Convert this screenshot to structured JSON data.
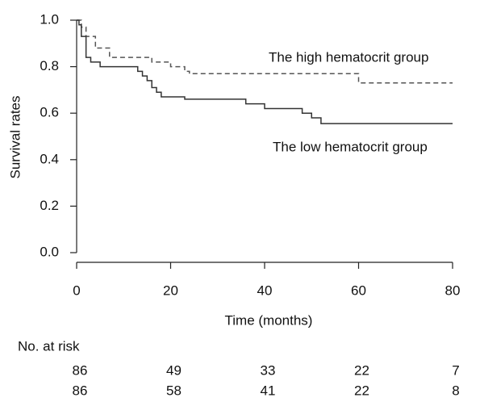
{
  "chart_data": {
    "type": "step",
    "x_label": "Time (months)",
    "y_label": "Survival rates",
    "xlim": [
      0,
      80
    ],
    "xticks": [
      0,
      20,
      40,
      60,
      80
    ],
    "ylim": [
      0,
      1
    ],
    "yticks": [
      {
        "value": 0,
        "label": "0.0"
      },
      0.2,
      0.4,
      0.6,
      0.8,
      {
        "value": 1,
        "label": "1.0"
      }
    ],
    "series": [
      {
        "name": "The high hematocrit group",
        "color": "#555555",
        "dashed": true,
        "x": [
          0,
          1,
          2,
          4,
          7,
          16,
          20,
          23,
          24,
          60,
          80
        ],
        "values": [
          1.0,
          0.97,
          0.93,
          0.88,
          0.84,
          0.82,
          0.8,
          0.78,
          0.77,
          0.73,
          0.73
        ]
      },
      {
        "name": "The low hematocrit group",
        "color": "#333333",
        "dashed": false,
        "x": [
          0,
          0.5,
          1,
          2,
          3,
          5,
          13,
          14,
          15,
          16,
          17,
          18,
          23,
          36,
          40,
          48,
          50,
          52,
          80
        ],
        "values": [
          1.0,
          0.98,
          0.93,
          0.84,
          0.82,
          0.8,
          0.78,
          0.76,
          0.74,
          0.71,
          0.69,
          0.67,
          0.66,
          0.64,
          0.62,
          0.6,
          0.58,
          0.555,
          0.555
        ]
      }
    ],
    "risk_table": {
      "title": "No. at risk",
      "rows": [
        [
          86,
          49,
          33,
          22,
          7
        ],
        [
          86,
          58,
          41,
          22,
          8
        ]
      ]
    }
  }
}
